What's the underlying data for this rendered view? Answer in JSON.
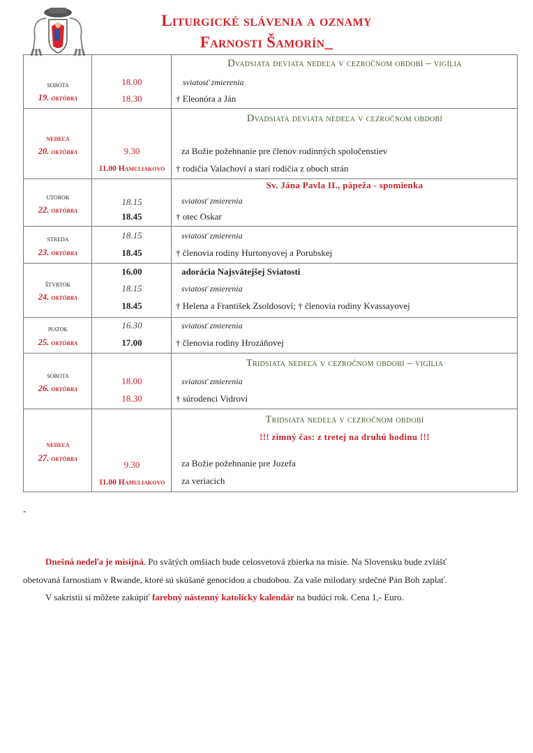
{
  "header": {
    "title_line1": "Liturgické slávenia a oznamy",
    "title_line2": "Farnosti Šamorín_",
    "logo": "parish-coat-of-arms"
  },
  "rows": [
    {
      "day": "sobota",
      "date_num": "19.",
      "date_month": "októbra",
      "heading": "Dvadsiata deviata nedeľa v  cezročnom období – vigília",
      "entries": [
        {
          "time": "18.00",
          "text": "sviatosť zmierenia"
        },
        {
          "time": "18.30",
          "text": "† Eleonóra a Ján"
        }
      ]
    },
    {
      "day": "nedeľa",
      "date_num": "20.",
      "date_month": "októbra",
      "heading": "Dvadsiata deviata nedeľa v cezročnom období",
      "entries": [
        {
          "time": "9.30",
          "text": "za Božie požehnanie pre členov rodinných spoločenstiev"
        },
        {
          "time": "11.00",
          "place": "Hamuliakovo",
          "text": "† rodičia Valachoví a starí rodičia z oboch strán"
        }
      ]
    },
    {
      "day": "utorok",
      "date_num": "22.",
      "date_month": "októbra",
      "heading": "Sv. Jána Pavla II., pápeža - spomienka",
      "entries": [
        {
          "time": "18.15",
          "text": "sviatosť zmierenia"
        },
        {
          "time": "18.45",
          "text": "† otec Oskar"
        }
      ]
    },
    {
      "day": "streda",
      "date_num": "23.",
      "date_month": "októbra",
      "entries": [
        {
          "time": "18.15",
          "text": "sviatosť zmierenia"
        },
        {
          "time": "18.45",
          "text": "† členovia rodiny Hurtonyovej a Porubskej"
        }
      ]
    },
    {
      "day": "štvrtok",
      "date_num": "24.",
      "date_month": "októbra",
      "entries": [
        {
          "time": "16.00",
          "text": "adorácia Najsvätejšej Sviatosti"
        },
        {
          "time": "18.15",
          "text": "sviatosť zmierenia"
        },
        {
          "time": "18.45",
          "text": "† Helena a František Zsoldosoví; † členovia rodiny Kvassayovej"
        }
      ]
    },
    {
      "day": "piatok",
      "date_num": "25.",
      "date_month": "októbra",
      "entries": [
        {
          "time": "16.30",
          "text": "sviatosť zmierenia"
        },
        {
          "time": "17.00",
          "text": "† členovia rodiny Hrozáňovej"
        }
      ]
    },
    {
      "day": "sobota",
      "date_num": "26.",
      "date_month": "októbra",
      "heading": "Tridsiata nedeľa v  cezročnom období – vigília",
      "entries": [
        {
          "time": "18.00",
          "text": "sviatosť zmierenia"
        },
        {
          "time": "18.30",
          "text": "† súrodenci Vidroví"
        }
      ]
    },
    {
      "day": "nedeľa",
      "date_num": "27.",
      "date_month": "októbra",
      "heading": "Tridsiata nedeľa v cezročnom období",
      "note": "!!! zimný čas: z tretej na druhú hodinu !!!",
      "entries": [
        {
          "time": "9.30",
          "text": "za Božie požehnanie pre Jozefa"
        },
        {
          "time": "11.00",
          "place": "Hamuliakovo",
          "text": "za veriacich"
        }
      ]
    }
  ],
  "dash": "-",
  "announcements": {
    "p1_red": "Dnešná nedeľa je misijná",
    "p1_rest": ". Po svätých omšiach bude celosvetová zbierka na misie. Na Slovensku bude zvlášť",
    "p1_line2": "obetovaná farnostiam v Rwande, ktoré sú skúšané genocídou a chudobou.  Za vaše milodary srdečné Pán Boh zaplať.",
    "p2_pre": "V sakristii si môžete zakúpiť ",
    "p2_red": "farebný nástenný katolícky kalendár",
    "p2_post": " na budúci rok. Cena 1,- Euro."
  },
  "colors": {
    "accent_red": "#c8232a",
    "heading_green": "#3f5a2a",
    "border": "#777777"
  }
}
